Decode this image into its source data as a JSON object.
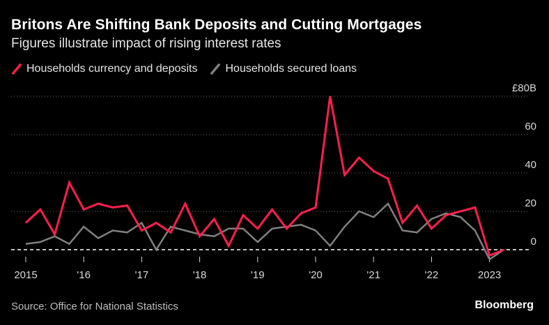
{
  "header": {
    "title": "Britons Are Shifting Bank Deposits and Cutting Mortgages",
    "subtitle": "Figures illustrate impact of rising interest rates"
  },
  "legend": {
    "items": [
      {
        "label": "Households currency and deposits",
        "color": "#ff1f4d"
      },
      {
        "label": "Households secured loans",
        "color": "#808080"
      }
    ]
  },
  "footer": {
    "source": "Source: Office for National Statistics",
    "brand": "Bloomberg"
  },
  "chart_data": {
    "type": "line",
    "x": [
      "2015 Q1",
      "2015 Q2",
      "2015 Q3",
      "2015 Q4",
      "2016 Q1",
      "2016 Q2",
      "2016 Q3",
      "2016 Q4",
      "2017 Q1",
      "2017 Q2",
      "2017 Q3",
      "2017 Q4",
      "2018 Q1",
      "2018 Q2",
      "2018 Q3",
      "2018 Q4",
      "2019 Q1",
      "2019 Q2",
      "2019 Q3",
      "2019 Q4",
      "2020 Q1",
      "2020 Q2",
      "2020 Q3",
      "2020 Q4",
      "2021 Q1",
      "2021 Q2",
      "2021 Q3",
      "2021 Q4",
      "2022 Q1",
      "2022 Q2",
      "2022 Q3",
      "2022 Q4",
      "2023 Q1",
      "2023 Q2"
    ],
    "x_ticks": [
      {
        "index": 0,
        "label": "2015"
      },
      {
        "index": 4,
        "label": "'16"
      },
      {
        "index": 8,
        "label": "'17"
      },
      {
        "index": 12,
        "label": "'18"
      },
      {
        "index": 16,
        "label": "'19"
      },
      {
        "index": 20,
        "label": "'20"
      },
      {
        "index": 24,
        "label": "'21"
      },
      {
        "index": 28,
        "label": "'22"
      },
      {
        "index": 32,
        "label": "2023"
      }
    ],
    "y_ticks": [
      {
        "value": 0,
        "label": "0"
      },
      {
        "value": 20,
        "label": "20"
      },
      {
        "value": 40,
        "label": "40"
      },
      {
        "value": 60,
        "label": "60"
      },
      {
        "value": 80,
        "label": "£80B"
      }
    ],
    "ylim": [
      -7,
      80
    ],
    "grid": true,
    "series": [
      {
        "name": "Households currency and deposits",
        "color": "#ff1f4d",
        "values": [
          14,
          21,
          8,
          35,
          21,
          24,
          22,
          23,
          10,
          14,
          9,
          24,
          7,
          16,
          2,
          18,
          11,
          21,
          11,
          19,
          22,
          80,
          39,
          48,
          41,
          37,
          14,
          23,
          11,
          18,
          20,
          22,
          -3,
          0
        ]
      },
      {
        "name": "Households secured loans",
        "color": "#808080",
        "values": [
          3,
          4,
          7,
          3,
          12,
          6,
          10,
          9,
          14,
          0,
          12,
          10,
          8,
          7,
          11,
          11,
          4,
          11,
          12,
          13,
          10,
          2,
          12,
          20,
          17,
          24,
          10,
          9,
          16,
          19,
          17,
          10,
          -5,
          0
        ]
      }
    ]
  }
}
